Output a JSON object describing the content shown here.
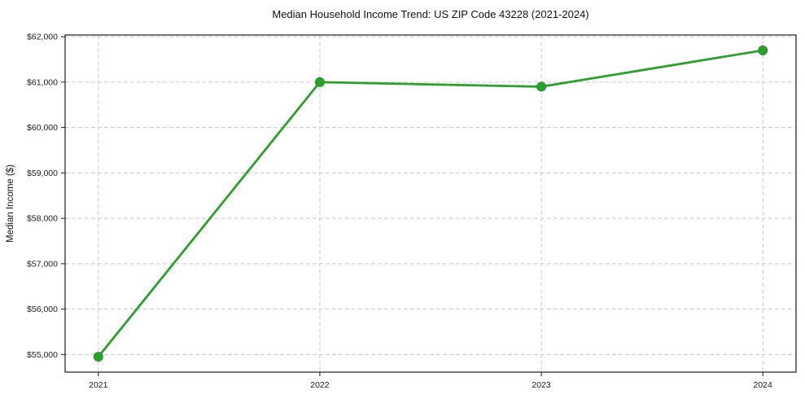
{
  "chart": {
    "title": "Median Household Income Trend: US ZIP Code 43228 (2021-2024)",
    "ylabel": "Median Income ($)"
  },
  "chart_data": {
    "type": "line",
    "title": "Median Household Income Trend: US ZIP Code 43228 (2021-2024)",
    "xlabel": "",
    "ylabel": "Median Income ($)",
    "x": [
      2021,
      2022,
      2023,
      2024
    ],
    "values": [
      54950,
      61000,
      60900,
      61700
    ],
    "x_tick_labels": [
      "2021",
      "2022",
      "2023",
      "2024"
    ],
    "y_ticks": [
      55000,
      56000,
      57000,
      58000,
      59000,
      60000,
      61000,
      62000
    ],
    "y_tick_labels": [
      "$55,000",
      "$56,000",
      "$57,000",
      "$58,000",
      "$59,000",
      "$60,000",
      "$61,000",
      "$62,000"
    ],
    "xlim": [
      2020.85,
      2024.15
    ],
    "ylim": [
      54612,
      62038
    ],
    "grid": true,
    "grid_style": "dashed",
    "legend": "none",
    "line_color": "#2ca02c",
    "marker_color": "#2ca02c",
    "marker_edge_color": "#249124",
    "grid_color": "#cccccc",
    "spine_color": "#1a1a1a",
    "background_color": "#ffffff"
  }
}
